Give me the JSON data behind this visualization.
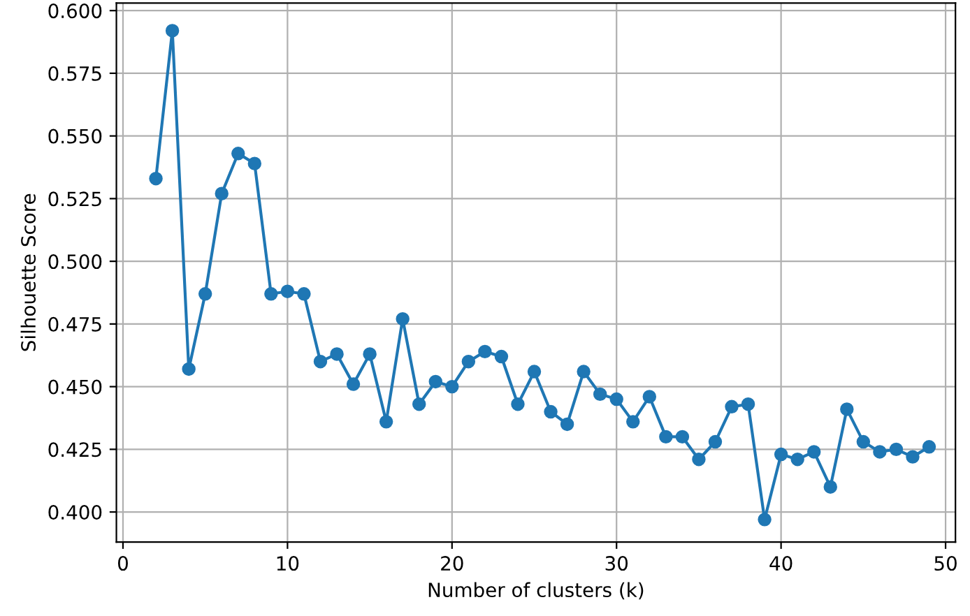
{
  "chart_data": {
    "type": "line",
    "xlabel": "Number of clusters (k)",
    "ylabel": "Silhouette Score",
    "x": [
      2,
      3,
      4,
      5,
      6,
      7,
      8,
      9,
      10,
      11,
      12,
      13,
      14,
      15,
      16,
      17,
      18,
      19,
      20,
      21,
      22,
      23,
      24,
      25,
      26,
      27,
      28,
      29,
      30,
      31,
      32,
      33,
      34,
      35,
      36,
      37,
      38,
      39,
      40,
      41,
      42,
      43,
      44,
      45,
      46,
      47,
      48,
      49
    ],
    "series": [
      {
        "color": "#1f77b4",
        "values": [
          0.533,
          0.592,
          0.457,
          0.487,
          0.527,
          0.543,
          0.539,
          0.487,
          0.488,
          0.487,
          0.46,
          0.463,
          0.451,
          0.463,
          0.436,
          0.477,
          0.443,
          0.452,
          0.45,
          0.46,
          0.464,
          0.462,
          0.443,
          0.456,
          0.44,
          0.435,
          0.456,
          0.447,
          0.445,
          0.436,
          0.446,
          0.43,
          0.43,
          0.421,
          0.428,
          0.442,
          0.443,
          0.397,
          0.423,
          0.421,
          0.424,
          0.41,
          0.441,
          0.428,
          0.424,
          0.425,
          0.422,
          0.426
        ]
      }
    ],
    "xlim": [
      -0.4,
      50.6
    ],
    "ylim": [
      0.388,
      0.603
    ],
    "xticks": [
      0,
      10,
      20,
      30,
      40,
      50
    ],
    "yticks": [
      {
        "value": 0.4,
        "label": "0.400"
      },
      {
        "value": 0.425,
        "label": "0.425"
      },
      {
        "value": 0.45,
        "label": "0.450"
      },
      {
        "value": 0.475,
        "label": "0.475"
      },
      {
        "value": 0.5,
        "label": "0.500"
      },
      {
        "value": 0.525,
        "label": "0.525"
      },
      {
        "value": 0.55,
        "label": "0.550"
      },
      {
        "value": 0.575,
        "label": "0.575"
      },
      {
        "value": 0.6,
        "label": "0.600"
      }
    ],
    "grid": true,
    "marker": "circle",
    "line_style": "solid"
  }
}
